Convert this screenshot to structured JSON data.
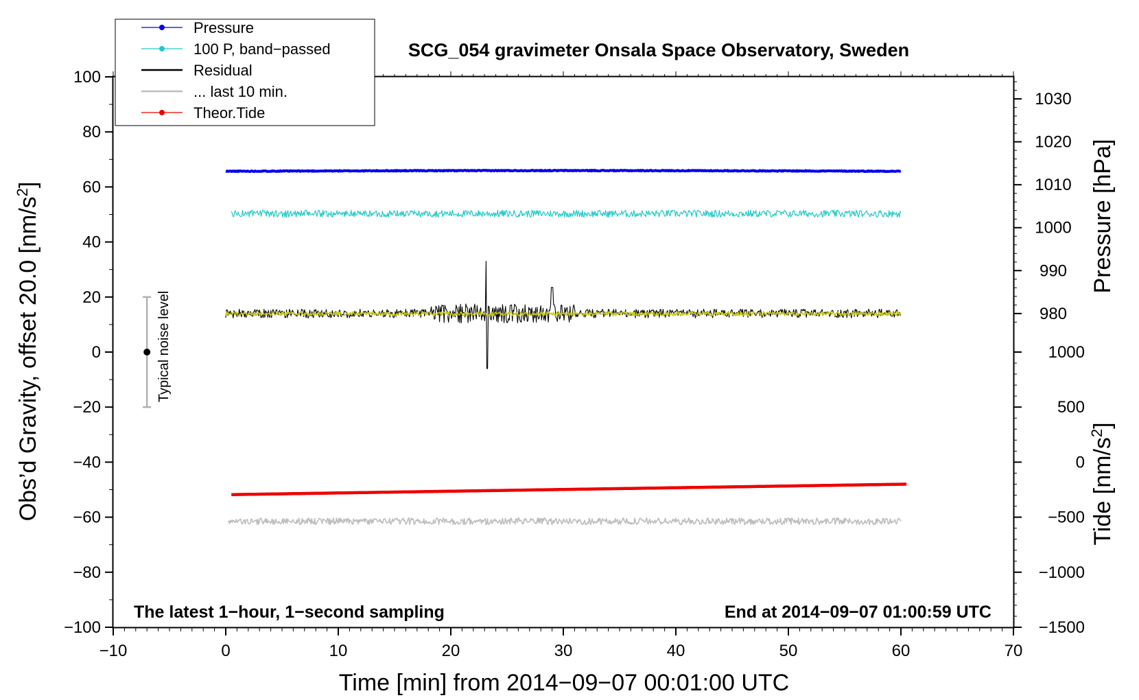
{
  "chart_data": {
    "type": "line",
    "title": "SCG_054 gravimeter Onsala Space Observatory, Sweden",
    "xlabel": "Time [min] from 2014−09−07 00:01:00 UTC",
    "ylabel_main": "Obs’d Gravity, offset 20.0 [nm/s",
    "ylabel_main_sup": "2",
    "ylabel_main_end": "]",
    "ylabel_pressure": "Pressure [hPa]",
    "ylabel_tide": "Tide [nm/s",
    "ylabel_tide_sup": "2",
    "ylabel_tide_end": "]",
    "xlim": [
      -10,
      70
    ],
    "ylim": [
      -100,
      100
    ],
    "x_ticks": [
      -10,
      0,
      10,
      20,
      30,
      40,
      50,
      60,
      70
    ],
    "x_tick_labels": [
      "−10",
      "0",
      "10",
      "20",
      "30",
      "40",
      "50",
      "60",
      "70"
    ],
    "y_ticks": [
      -100,
      -80,
      -60,
      -40,
      -20,
      0,
      20,
      40,
      60,
      80,
      100
    ],
    "y_tick_labels": [
      "−100",
      "−80",
      "−60",
      "−40",
      "−20",
      "0",
      "20",
      "40",
      "60",
      "80",
      "100"
    ],
    "pressure_axis": {
      "ticks": [
        980,
        990,
        1000,
        1010,
        1020,
        1030
      ],
      "tick_labels": [
        "980",
        "990",
        "1000",
        "1010",
        "1020",
        "1030"
      ],
      "hpa_at_main": [
        [
          980,
          14
        ],
        [
          1030,
          92
        ]
      ]
    },
    "tide_axis": {
      "ticks": [
        -1500,
        -1000,
        -500,
        0,
        500,
        1000
      ],
      "tick_labels": [
        "−1500",
        "−1000",
        "−500",
        "0",
        "500",
        "1000"
      ],
      "tide_at_main": [
        [
          -1500,
          -100
        ],
        [
          1000,
          0
        ]
      ]
    },
    "annotations": {
      "bottom_left": "The latest 1−hour, 1−second sampling",
      "bottom_right": "End at 2014−09−07 01:00:59 UTC",
      "noise_label": "Typical noise level"
    },
    "noise_bar": {
      "x": -7,
      "center": 0,
      "low": -20,
      "high": 20
    },
    "legend": [
      {
        "label": "Pressure",
        "color": "#0000ee",
        "marker": true
      },
      {
        "label": "100 P, band−passed",
        "color": "#22c8c8",
        "marker": true
      },
      {
        "label": "Residual",
        "color": "#000000",
        "marker": false
      },
      {
        "label": "... last 10 min.",
        "color": "#bdbdbd",
        "marker": false
      },
      {
        "label": "Theor.Tide",
        "color": "#ee0000",
        "marker": true
      }
    ],
    "series": [
      {
        "name": "Pressure",
        "color": "#0000ee",
        "x_range": [
          0,
          60
        ],
        "base": 65.7,
        "noise": 0.15,
        "bump": 0.25,
        "width": 4
      },
      {
        "name": "100 P, band−passed",
        "color": "#22c8c8",
        "x_range": [
          0.5,
          60
        ],
        "base": 50.3,
        "noise": 1.3,
        "width": 1.2
      },
      {
        "name": "Residual",
        "color": "#000000",
        "x_range": [
          0,
          60
        ],
        "base": 14.0,
        "noise": 1.6,
        "width": 1.1,
        "spike_x": 23.2,
        "spike_peak": 33.0,
        "spike_min": -6.0,
        "burst": [
          [
            18,
            31,
            3.5
          ]
        ]
      },
      {
        "name": "Residual smoothed",
        "color": "#c8c814",
        "x_range": [
          0,
          60
        ],
        "base": 13.9,
        "noise": 0.7,
        "width": 1.6
      },
      {
        "name": "Theor.Tide",
        "color": "#ee0000",
        "x_range": [
          0.5,
          60.5
        ],
        "y_start": -51.8,
        "y_end": -48.0,
        "width": 4.5
      },
      {
        "name": "... last 10 min.",
        "color": "#bdbdbd",
        "x_range": [
          0.2,
          60
        ],
        "base": -61.5,
        "noise": 1.2,
        "width": 1.6
      }
    ]
  }
}
